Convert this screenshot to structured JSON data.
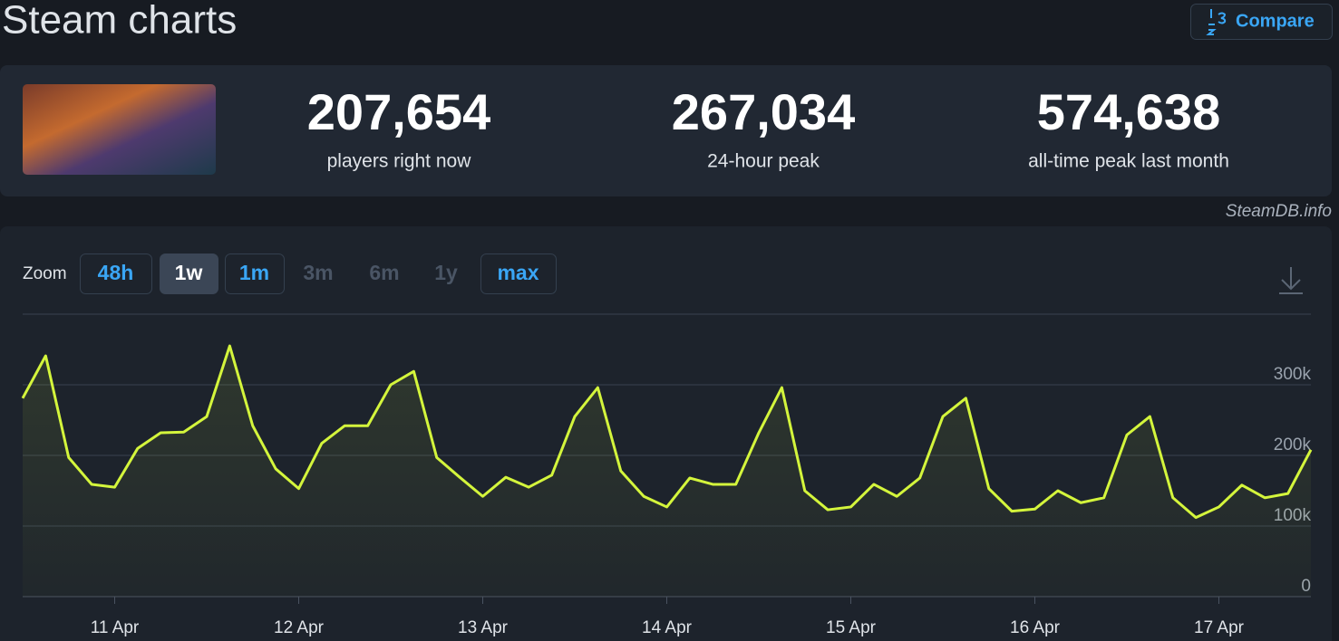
{
  "header": {
    "title": "Steam charts",
    "compare": "Compare"
  },
  "stats": [
    {
      "value": "207,654",
      "label": "players right now"
    },
    {
      "value": "267,034",
      "label": "24-hour peak"
    },
    {
      "value": "574,638",
      "label": "all-time peak last month"
    }
  ],
  "credit": "SteamDB.info",
  "zoom": {
    "label": "Zoom",
    "options": [
      "48h",
      "1w",
      "1m",
      "3m",
      "6m",
      "1y",
      "max"
    ],
    "active_index": 1,
    "disabled_indices": [
      3,
      4,
      5
    ]
  },
  "chart_data": {
    "type": "line",
    "color": "#d4f53c",
    "grid": true,
    "categories": [
      null,
      null,
      null,
      null,
      "11 Apr",
      null,
      null,
      null,
      null,
      null,
      null,
      null,
      "12 Apr",
      null,
      null,
      null,
      null,
      null,
      null,
      null,
      "13 Apr",
      null,
      null,
      null,
      null,
      null,
      null,
      null,
      "14 Apr",
      null,
      null,
      null,
      null,
      null,
      null,
      null,
      "15 Apr",
      null,
      null,
      null,
      null,
      null,
      null,
      null,
      "16 Apr",
      null,
      null,
      null,
      null,
      null,
      null,
      null,
      "17 Apr",
      null,
      null,
      null,
      null
    ],
    "values": [
      281000,
      341000,
      197000,
      159000,
      155000,
      210000,
      232000,
      233000,
      255000,
      355000,
      242000,
      181000,
      153000,
      217000,
      242000,
      242000,
      300000,
      319000,
      197000,
      169000,
      142000,
      169000,
      155000,
      172000,
      255000,
      296000,
      178000,
      142000,
      127000,
      168000,
      159000,
      159000,
      232000,
      296000,
      150000,
      123000,
      127000,
      159000,
      142000,
      168000,
      255000,
      281000,
      153000,
      121000,
      124000,
      150000,
      133000,
      140000,
      229000,
      255000,
      140000,
      112000,
      127000,
      158000,
      140000,
      146000,
      208000
    ],
    "ylim": [
      0,
      400000
    ],
    "yticks": [
      0,
      {
        "value": 100000,
        "label": "100k"
      },
      {
        "value": 200000,
        "label": "200k"
      },
      {
        "value": 300000,
        "label": "300k"
      }
    ]
  }
}
